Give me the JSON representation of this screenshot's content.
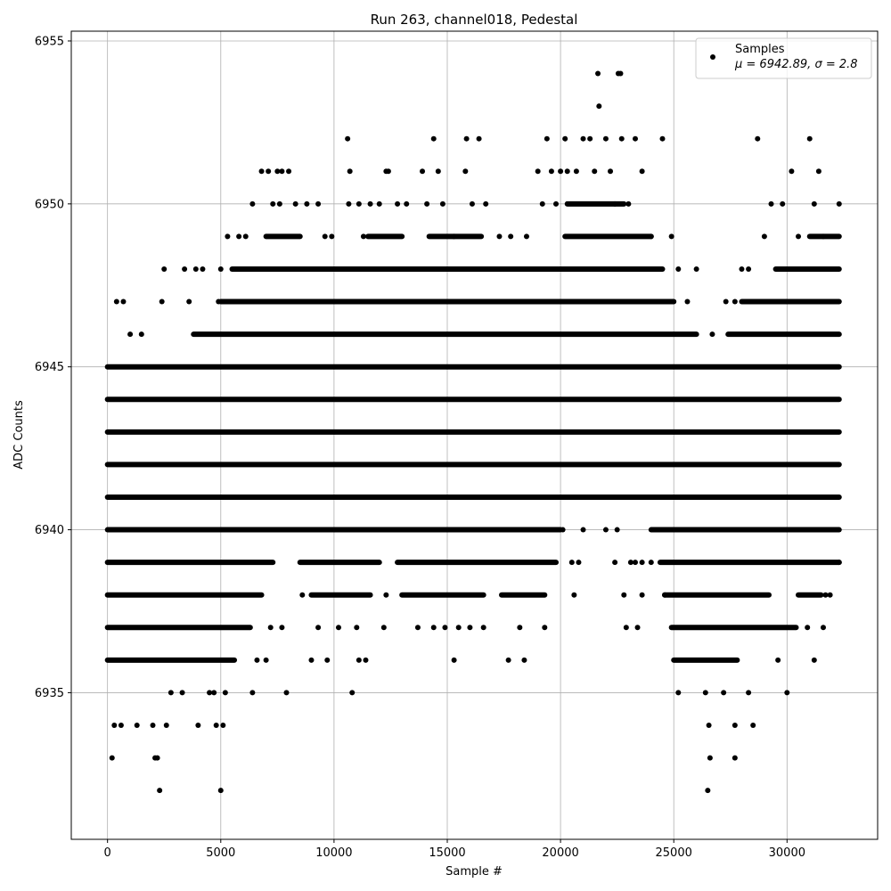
{
  "chart_data": {
    "type": "scatter",
    "title": "Run 263, channel018, Pedestal",
    "xlabel": "Sample #",
    "ylabel": "ADC Counts",
    "xlim": [
      -1600,
      34000
    ],
    "ylim": [
      6930.5,
      6955.3
    ],
    "x_ticks": [
      0,
      5000,
      10000,
      15000,
      20000,
      25000,
      30000
    ],
    "y_ticks": [
      6935,
      6940,
      6945,
      6950,
      6955
    ],
    "grid": true,
    "legend_position": "top-right",
    "legend": {
      "series_name": "Samples",
      "stats_prefix": "μ = 6942.89, σ = 2.8"
    },
    "marker_color": "#000000",
    "mean": 6942.89,
    "sigma": 2.8,
    "series": [
      {
        "name": "Samples",
        "points": [
          [
            400,
            6947
          ],
          [
            700,
            6947
          ],
          [
            1000,
            6946
          ],
          [
            1500,
            6946
          ],
          [
            2400,
            6947
          ],
          [
            2500,
            6948
          ],
          [
            3400,
            6948
          ],
          [
            3600,
            6947
          ],
          [
            3900,
            6948
          ],
          [
            4200,
            6948
          ],
          [
            4900,
            6947
          ],
          [
            5000,
            6948
          ],
          [
            5300,
            6949
          ],
          [
            5800,
            6949
          ],
          [
            6100,
            6949
          ],
          [
            6400,
            6950
          ],
          [
            6800,
            6951
          ],
          [
            7100,
            6951
          ],
          [
            7500,
            6951
          ],
          [
            7700,
            6951
          ],
          [
            8000,
            6951
          ],
          [
            7300,
            6950
          ],
          [
            7600,
            6950
          ],
          [
            8300,
            6950
          ],
          [
            8800,
            6950
          ],
          [
            9300,
            6950
          ],
          [
            9600,
            6949
          ],
          [
            9900,
            6949
          ],
          [
            10600,
            6952
          ],
          [
            10700,
            6951
          ],
          [
            10650,
            6950
          ],
          [
            11100,
            6950
          ],
          [
            11300,
            6949
          ],
          [
            11600,
            6950
          ],
          [
            12000,
            6950
          ],
          [
            12300,
            6951
          ],
          [
            12400,
            6951
          ],
          [
            12800,
            6950
          ],
          [
            13200,
            6950
          ],
          [
            13900,
            6951
          ],
          [
            14100,
            6950
          ],
          [
            14400,
            6952
          ],
          [
            14600,
            6951
          ],
          [
            14800,
            6950
          ],
          [
            15300,
            6949
          ],
          [
            15800,
            6951
          ],
          [
            15850,
            6952
          ],
          [
            16100,
            6950
          ],
          [
            16400,
            6952
          ],
          [
            16700,
            6950
          ],
          [
            17300,
            6949
          ],
          [
            17800,
            6949
          ],
          [
            18500,
            6949
          ],
          [
            19000,
            6951
          ],
          [
            19200,
            6950
          ],
          [
            19400,
            6952
          ],
          [
            19600,
            6951
          ],
          [
            19800,
            6950
          ],
          [
            20000,
            6951
          ],
          [
            20200,
            6952
          ],
          [
            20300,
            6951
          ],
          [
            20700,
            6951
          ],
          [
            21000,
            6952
          ],
          [
            21300,
            6952
          ],
          [
            21500,
            6951
          ],
          [
            21700,
            6953
          ],
          [
            21650,
            6954
          ],
          [
            22000,
            6952
          ],
          [
            22200,
            6951
          ],
          [
            22400,
            6950
          ],
          [
            22550,
            6954
          ],
          [
            22650,
            6954
          ],
          [
            22700,
            6952
          ],
          [
            23000,
            6950
          ],
          [
            23300,
            6952
          ],
          [
            23600,
            6951
          ],
          [
            24000,
            6949
          ],
          [
            24500,
            6952
          ],
          [
            24900,
            6949
          ],
          [
            25200,
            6948
          ],
          [
            25600,
            6947
          ],
          [
            26000,
            6948
          ],
          [
            26700,
            6946
          ],
          [
            27300,
            6947
          ],
          [
            27700,
            6947
          ],
          [
            28000,
            6948
          ],
          [
            28300,
            6948
          ],
          [
            28700,
            6952
          ],
          [
            29000,
            6949
          ],
          [
            29300,
            6950
          ],
          [
            29800,
            6950
          ],
          [
            30200,
            6951
          ],
          [
            30500,
            6949
          ],
          [
            31000,
            6952
          ],
          [
            31200,
            6950
          ],
          [
            31400,
            6951
          ],
          [
            31600,
            6949
          ],
          [
            32300,
            6950
          ],
          [
            200,
            6933
          ],
          [
            2100,
            6933
          ],
          [
            2200,
            6933
          ],
          [
            2300,
            6932
          ],
          [
            5000,
            6932
          ],
          [
            26500,
            6932
          ],
          [
            26600,
            6933
          ],
          [
            27700,
            6933
          ],
          [
            26550,
            6934
          ],
          [
            27700,
            6934
          ],
          [
            28500,
            6934
          ],
          [
            4000,
            6934
          ],
          [
            4800,
            6934
          ],
          [
            5100,
            6934
          ],
          [
            2600,
            6934
          ],
          [
            2000,
            6934
          ],
          [
            1300,
            6934
          ],
          [
            600,
            6934
          ],
          [
            300,
            6934
          ],
          [
            5200,
            6935
          ],
          [
            6400,
            6935
          ],
          [
            7900,
            6935
          ],
          [
            10800,
            6935
          ],
          [
            3300,
            6935
          ],
          [
            2800,
            6935
          ],
          [
            4500,
            6935
          ],
          [
            4700,
            6935
          ],
          [
            25200,
            6935
          ],
          [
            26400,
            6935
          ],
          [
            27200,
            6935
          ],
          [
            28300,
            6935
          ],
          [
            30000,
            6935
          ],
          [
            7000,
            6936
          ],
          [
            6600,
            6936
          ],
          [
            9000,
            6936
          ],
          [
            9700,
            6936
          ],
          [
            11100,
            6936
          ],
          [
            11400,
            6936
          ],
          [
            15300,
            6936
          ],
          [
            17700,
            6936
          ],
          [
            18400,
            6936
          ],
          [
            31200,
            6936
          ],
          [
            29600,
            6936
          ],
          [
            13700,
            6937
          ],
          [
            14400,
            6937
          ],
          [
            14900,
            6937
          ],
          [
            15500,
            6937
          ],
          [
            16000,
            6937
          ],
          [
            16600,
            6937
          ],
          [
            18200,
            6937
          ],
          [
            19300,
            6937
          ],
          [
            22900,
            6937
          ],
          [
            23400,
            6937
          ],
          [
            30900,
            6937
          ],
          [
            31600,
            6937
          ],
          [
            20600,
            6938
          ],
          [
            22800,
            6938
          ],
          [
            23600,
            6938
          ],
          [
            24600,
            6938
          ],
          [
            31700,
            6938
          ],
          [
            31900,
            6938
          ],
          [
            22400,
            6939
          ],
          [
            23100,
            6939
          ],
          [
            23300,
            6939
          ],
          [
            23600,
            6939
          ],
          [
            24000,
            6939
          ],
          [
            20500,
            6939
          ],
          [
            20800,
            6939
          ],
          [
            32300,
            6939
          ],
          [
            20100,
            6940
          ],
          [
            21000,
            6940
          ],
          [
            22000,
            6940
          ],
          [
            22500,
            6940
          ],
          [
            12300,
            6938
          ],
          [
            12200,
            6937
          ],
          [
            10200,
            6937
          ],
          [
            11000,
            6937
          ],
          [
            8600,
            6938
          ],
          [
            9300,
            6937
          ],
          [
            7200,
            6937
          ],
          [
            7700,
            6937
          ]
        ],
        "dense_bands": [
          {
            "y": 6936,
            "x_ranges": [
              [
                0,
                5600
              ],
              [
                25000,
                27800
              ]
            ]
          },
          {
            "y": 6937,
            "x_ranges": [
              [
                0,
                6300
              ],
              [
                24900,
                30400
              ]
            ]
          },
          {
            "y": 6938,
            "x_ranges": [
              [
                0,
                6800
              ],
              [
                9000,
                11600
              ],
              [
                13000,
                16600
              ],
              [
                17400,
                19300
              ],
              [
                24600,
                29200
              ],
              [
                30500,
                31500
              ]
            ]
          },
          {
            "y": 6939,
            "x_ranges": [
              [
                0,
                7300
              ],
              [
                8500,
                12000
              ],
              [
                12800,
                19800
              ],
              [
                24400,
                32300
              ]
            ]
          },
          {
            "y": 6940,
            "x_ranges": [
              [
                0,
                20000
              ],
              [
                24000,
                32300
              ]
            ]
          },
          {
            "y": 6941,
            "x_ranges": [
              [
                0,
                32300
              ]
            ]
          },
          {
            "y": 6942,
            "x_ranges": [
              [
                0,
                32300
              ]
            ]
          },
          {
            "y": 6943,
            "x_ranges": [
              [
                0,
                32300
              ]
            ]
          },
          {
            "y": 6944,
            "x_ranges": [
              [
                0,
                32300
              ]
            ]
          },
          {
            "y": 6945,
            "x_ranges": [
              [
                0,
                32300
              ]
            ]
          },
          {
            "y": 6946,
            "x_ranges": [
              [
                3800,
                26000
              ],
              [
                27400,
                32300
              ]
            ]
          },
          {
            "y": 6947,
            "x_ranges": [
              [
                5000,
                25000
              ],
              [
                28000,
                32300
              ]
            ]
          },
          {
            "y": 6948,
            "x_ranges": [
              [
                5500,
                24500
              ],
              [
                29500,
                32300
              ]
            ]
          },
          {
            "y": 6949,
            "x_ranges": [
              [
                7000,
                8500
              ],
              [
                11500,
                13000
              ],
              [
                14200,
                16500
              ],
              [
                20200,
                24000
              ],
              [
                31000,
                32300
              ]
            ]
          },
          {
            "y": 6950,
            "x_ranges": [
              [
                20300,
                22800
              ]
            ]
          }
        ]
      }
    ]
  }
}
